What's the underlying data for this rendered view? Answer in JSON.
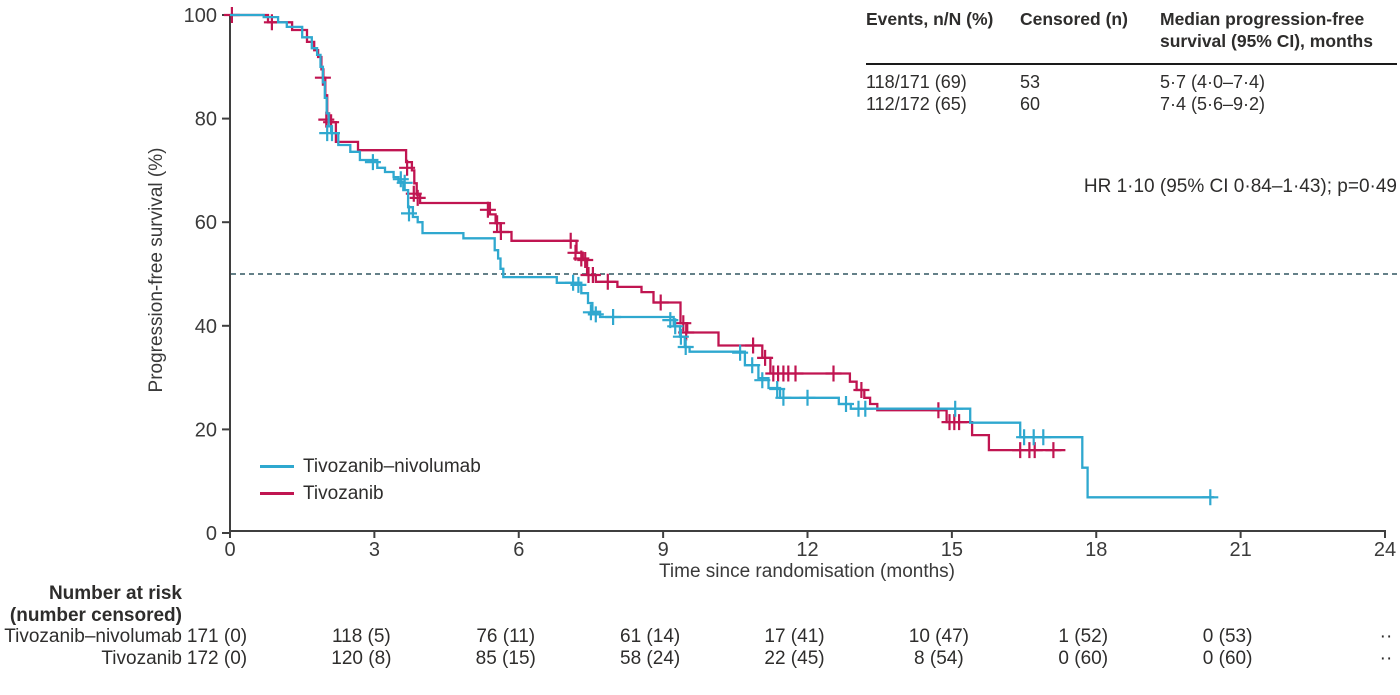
{
  "colors": {
    "blue": "#2FA8CF",
    "red": "#C01551",
    "reference_dash": "#4e6f77",
    "axis": "#3f3f3f",
    "text": "#2e2d2c",
    "tick_text": "#3a3a3a"
  },
  "stats_table": {
    "headers": [
      "Events, n/N (%)",
      "Censored (n)",
      "Median progression-free survival (95% CI), months"
    ],
    "rows": [
      [
        "118/171 (69)",
        "53",
        "5·7 (4·0–7·4)"
      ],
      [
        "112/172 (65)",
        "60",
        "7·4 (5·6–9·2)"
      ]
    ]
  },
  "annotations": {
    "hr_text": "HR 1·10 (95% CI 0·84–1·43); p=0·49"
  },
  "chart_data": {
    "type": "line",
    "subtype": "kaplan-meier-step",
    "title": "",
    "xlabel": "Time since randomisation (months)",
    "ylabel": "Progression-free survival (%)",
    "xlim": [
      0,
      24
    ],
    "ylim": [
      0,
      100
    ],
    "x_ticks": [
      0,
      3,
      6,
      9,
      12,
      15,
      18,
      21,
      24
    ],
    "y_ticks": [
      0,
      20,
      40,
      60,
      80,
      100
    ],
    "grid": false,
    "legend_position": "lower-left",
    "reference_line_y": 50,
    "series": [
      {
        "name": "Tivozanib–nivolumab",
        "color": "#2FA8CF",
        "steps": [
          [
            0,
            100
          ],
          [
            0.7,
            99.6
          ],
          [
            1.0,
            98.6
          ],
          [
            1.18,
            97.7
          ],
          [
            1.5,
            95.7
          ],
          [
            1.7,
            93.6
          ],
          [
            1.81,
            92.3
          ],
          [
            1.88,
            90.0
          ],
          [
            1.93,
            87.0
          ],
          [
            1.97,
            84.0
          ],
          [
            2.01,
            81.0
          ],
          [
            2.05,
            78.5
          ],
          [
            2.1,
            77.2
          ],
          [
            2.25,
            74.9
          ],
          [
            2.5,
            73.6
          ],
          [
            2.7,
            72.0
          ],
          [
            3.06,
            70.5
          ],
          [
            3.22,
            69.7
          ],
          [
            3.4,
            68.7
          ],
          [
            3.5,
            67.8
          ],
          [
            3.6,
            66.2
          ],
          [
            3.7,
            62.9
          ],
          [
            3.8,
            61.0
          ],
          [
            3.9,
            60.0
          ],
          [
            4.0,
            57.9
          ],
          [
            4.85,
            56.9
          ],
          [
            5.5,
            54.6
          ],
          [
            5.57,
            53.0
          ],
          [
            5.62,
            51.0
          ],
          [
            5.68,
            49.4
          ],
          [
            6.79,
            48.3
          ],
          [
            7.3,
            46.3
          ],
          [
            7.44,
            44.4
          ],
          [
            7.53,
            42.7
          ],
          [
            7.69,
            41.7
          ],
          [
            9.22,
            39.9
          ],
          [
            9.35,
            37.9
          ],
          [
            9.45,
            35.9
          ],
          [
            9.55,
            35.0
          ],
          [
            10.7,
            32.4
          ],
          [
            10.98,
            29.9
          ],
          [
            11.19,
            28.0
          ],
          [
            11.43,
            26.1
          ],
          [
            12.65,
            24.9
          ],
          [
            12.9,
            24.0
          ],
          [
            15.38,
            21.3
          ],
          [
            16.42,
            18.5
          ],
          [
            17.71,
            12.6
          ],
          [
            17.82,
            6.9
          ],
          [
            20.45,
            6.9
          ]
        ],
        "censors": [
          [
            2.02,
            77.2
          ],
          [
            2.12,
            77.2
          ],
          [
            2.97,
            71.6
          ],
          [
            3.55,
            68.3
          ],
          [
            3.63,
            67.6
          ],
          [
            3.72,
            61.7
          ],
          [
            7.13,
            48.3
          ],
          [
            7.24,
            47.9
          ],
          [
            7.5,
            42.6
          ],
          [
            7.6,
            42.2
          ],
          [
            7.96,
            41.7
          ],
          [
            9.15,
            41.1
          ],
          [
            9.25,
            39.9
          ],
          [
            9.37,
            37.9
          ],
          [
            9.47,
            35.9
          ],
          [
            10.6,
            34.8
          ],
          [
            10.85,
            32.4
          ],
          [
            11.06,
            29.5
          ],
          [
            11.37,
            27.8
          ],
          [
            11.5,
            26.1
          ],
          [
            12.0,
            26.1
          ],
          [
            12.8,
            24.9
          ],
          [
            13.06,
            24.0
          ],
          [
            13.2,
            24.0
          ],
          [
            15.07,
            24.0
          ],
          [
            16.5,
            18.5
          ],
          [
            16.7,
            18.5
          ],
          [
            16.9,
            18.5
          ],
          [
            20.37,
            6.9
          ]
        ]
      },
      {
        "name": "Tivozanib",
        "color": "#C01551",
        "steps": [
          [
            0,
            100
          ],
          [
            0.79,
            98.6
          ],
          [
            1.29,
            97.1
          ],
          [
            1.6,
            94.8
          ],
          [
            1.75,
            93.2
          ],
          [
            1.83,
            91.9
          ],
          [
            1.9,
            89.5
          ],
          [
            1.94,
            87.9
          ],
          [
            1.98,
            84.5
          ],
          [
            2.02,
            81.0
          ],
          [
            2.06,
            79.3
          ],
          [
            2.2,
            75.5
          ],
          [
            2.66,
            73.9
          ],
          [
            3.66,
            71.6
          ],
          [
            3.78,
            70.0
          ],
          [
            3.83,
            67.5
          ],
          [
            3.88,
            65.3
          ],
          [
            3.95,
            63.7
          ],
          [
            5.4,
            61.5
          ],
          [
            5.52,
            59.8
          ],
          [
            5.62,
            58.1
          ],
          [
            5.85,
            56.4
          ],
          [
            7.2,
            54.1
          ],
          [
            7.33,
            52.7
          ],
          [
            7.42,
            49.8
          ],
          [
            7.6,
            48.5
          ],
          [
            8.05,
            47.5
          ],
          [
            8.55,
            46.5
          ],
          [
            8.8,
            44.5
          ],
          [
            9.36,
            40.5
          ],
          [
            9.5,
            38.7
          ],
          [
            10.15,
            36.2
          ],
          [
            11.06,
            33.8
          ],
          [
            11.23,
            30.8
          ],
          [
            12.88,
            29.2
          ],
          [
            13.02,
            27.6
          ],
          [
            13.18,
            26.1
          ],
          [
            13.3,
            24.9
          ],
          [
            13.45,
            23.7
          ],
          [
            14.89,
            21.4
          ],
          [
            15.42,
            18.9
          ],
          [
            15.77,
            16.0
          ],
          [
            17.36,
            16.0
          ]
        ],
        "censors": [
          [
            0.04,
            100
          ],
          [
            0.87,
            98.6
          ],
          [
            1.93,
            87.9
          ],
          [
            2.0,
            79.8
          ],
          [
            2.1,
            79.3
          ],
          [
            3.68,
            70.5
          ],
          [
            3.82,
            65.5
          ],
          [
            3.9,
            64.7
          ],
          [
            5.36,
            62.4
          ],
          [
            5.55,
            59.8
          ],
          [
            5.63,
            58.1
          ],
          [
            7.08,
            56.4
          ],
          [
            7.18,
            54.1
          ],
          [
            7.3,
            53.0
          ],
          [
            7.38,
            52.7
          ],
          [
            7.45,
            49.8
          ],
          [
            7.54,
            49.8
          ],
          [
            7.85,
            48.5
          ],
          [
            8.95,
            44.5
          ],
          [
            9.42,
            40.5
          ],
          [
            9.48,
            38.7
          ],
          [
            10.87,
            36.2
          ],
          [
            11.12,
            33.8
          ],
          [
            11.29,
            30.8
          ],
          [
            11.39,
            30.8
          ],
          [
            11.5,
            30.8
          ],
          [
            11.6,
            30.8
          ],
          [
            11.75,
            30.8
          ],
          [
            12.54,
            30.8
          ],
          [
            13.12,
            27.6
          ],
          [
            14.72,
            23.7
          ],
          [
            14.95,
            21.4
          ],
          [
            15.05,
            21.4
          ],
          [
            15.15,
            21.4
          ],
          [
            16.42,
            16.0
          ],
          [
            16.61,
            16.0
          ],
          [
            16.72,
            16.0
          ],
          [
            17.11,
            16.0
          ]
        ]
      }
    ]
  },
  "risk_table": {
    "header_line1": "Number at risk",
    "header_line2": "(number censored)",
    "time_points": [
      0,
      3,
      6,
      9,
      12,
      15,
      18,
      21
    ],
    "overflow_mark": "··",
    "rows": [
      {
        "label": "Tivozanib–nivolumab",
        "values": [
          "171 (0)",
          "118 (5)",
          "76 (11)",
          "61 (14)",
          "17 (41)",
          "10 (47)",
          "1 (52)",
          "0 (53)"
        ]
      },
      {
        "label": "Tivozanib",
        "values": [
          "172 (0)",
          "120 (8)",
          "85 (15)",
          "58 (24)",
          "22 (45)",
          "8 (54)",
          "0 (60)",
          "0 (60)"
        ]
      }
    ]
  }
}
